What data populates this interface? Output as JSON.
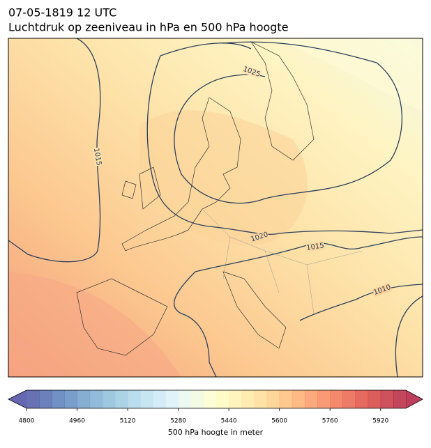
{
  "title": "07-05-1819 12 UTC",
  "subtitle": "Luchtdruk op zeeniveau in hPa en 500 hPa hoogte",
  "isobar_labels": [
    1025,
    1020,
    1015,
    1010,
    1015
  ],
  "colorbar": {
    "label": "500 hPa hoogte in meter",
    "lim": [
      4800,
      6000
    ],
    "step": 40,
    "ticks": [
      4800,
      4960,
      5120,
      5280,
      5440,
      5600,
      5760,
      5920
    ],
    "colormap": [
      "#313695",
      "#4575b4",
      "#74add1",
      "#abd9e9",
      "#e0f3f8",
      "#ffffbf",
      "#fee090",
      "#fdae61",
      "#f46d43",
      "#d73027",
      "#a50026"
    ],
    "extend": "both"
  }
}
